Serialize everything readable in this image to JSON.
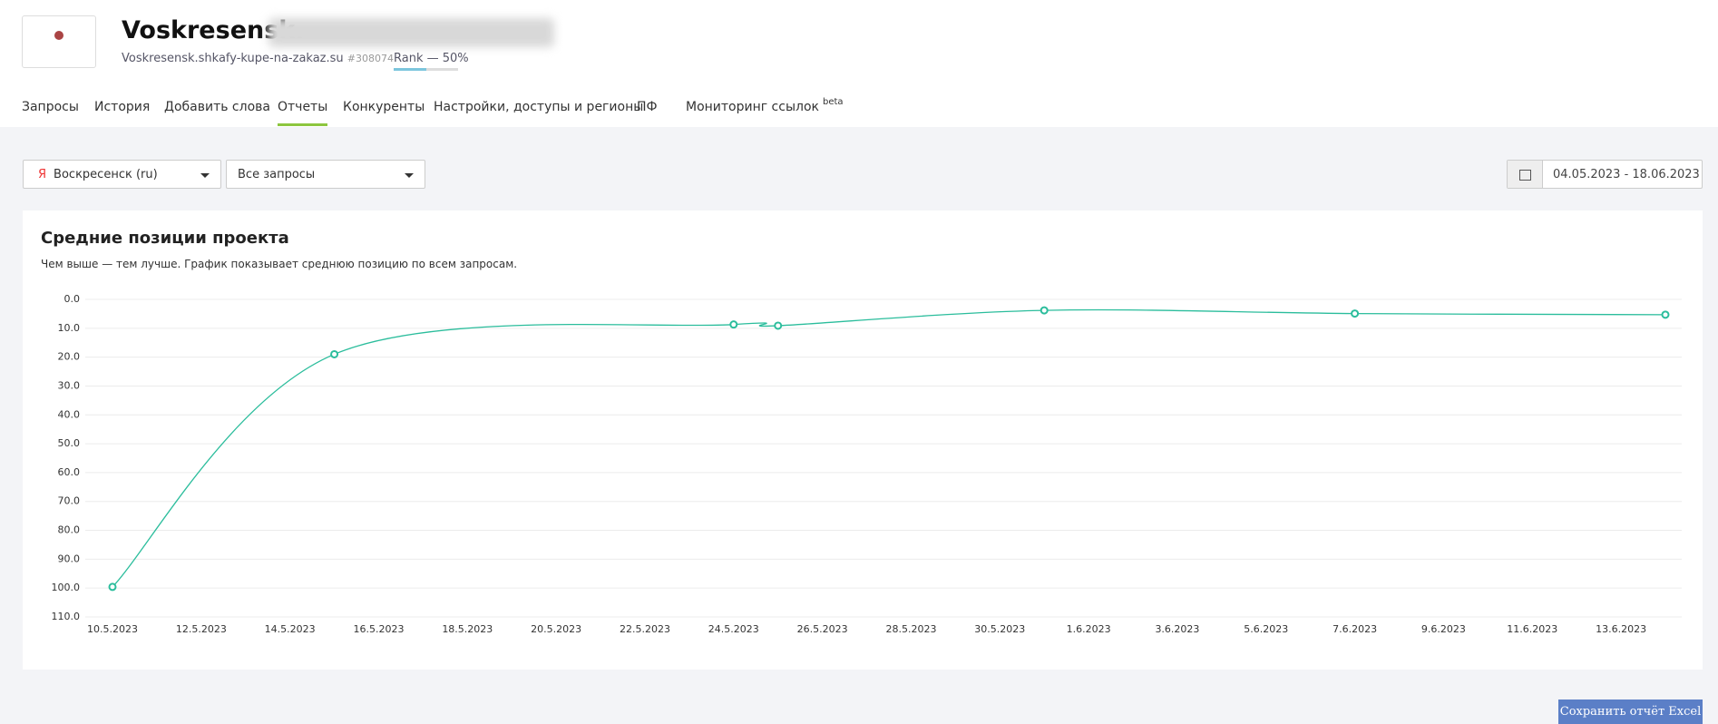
{
  "header": {
    "title": "Voskresensk.",
    "domain": "Voskresensk.shkafy-kupe-na-zakaz.su",
    "project_id": "#308074",
    "rank": "Rank — 50%"
  },
  "tabs": [
    {
      "label": "Запросы"
    },
    {
      "label": "История"
    },
    {
      "label": "Добавить слова"
    },
    {
      "label": "Отчеты"
    },
    {
      "label": "Конкуренты"
    },
    {
      "label": "Настройки, доступы и регионы"
    },
    {
      "label": "ПФ"
    },
    {
      "label": "Мониторинг ссылок",
      "badge": "beta"
    }
  ],
  "filters": {
    "region_icon": "Я",
    "region": "Воскресенск (ru)",
    "queries": "Все запросы",
    "date_range": "04.05.2023 - 18.06.2023"
  },
  "chart_data": {
    "type": "line",
    "title": "Средние позиции проекта",
    "subtitle": "Чем выше — тем лучше. График показывает среднюю позицию по всем запросам.",
    "x": [
      "2023-05-10",
      "2023-05-15",
      "2023-05-24",
      "2023-05-25",
      "2023-05-31",
      "2023-06-07",
      "2023-06-14"
    ],
    "values": [
      99.6,
      19.0,
      8.7,
      9.1,
      3.8,
      4.9,
      5.3
    ],
    "color": "#2bbd9c",
    "xlim": [
      "2023-05-10",
      "2023-06-14"
    ],
    "xticks": [
      {
        "value": "2023-05-10",
        "label": "10.5.2023"
      },
      {
        "value": "2023-05-12",
        "label": "12.5.2023"
      },
      {
        "value": "2023-05-14",
        "label": "14.5.2023"
      },
      {
        "value": "2023-05-16",
        "label": "16.5.2023"
      },
      {
        "value": "2023-05-18",
        "label": "18.5.2023"
      },
      {
        "value": "2023-05-20",
        "label": "20.5.2023"
      },
      {
        "value": "2023-05-22",
        "label": "22.5.2023"
      },
      {
        "value": "2023-05-24",
        "label": "24.5.2023"
      },
      {
        "value": "2023-05-26",
        "label": "26.5.2023"
      },
      {
        "value": "2023-05-28",
        "label": "28.5.2023"
      },
      {
        "value": "2023-05-30",
        "label": "30.5.2023"
      },
      {
        "value": "2023-06-01",
        "label": "1.6.2023"
      },
      {
        "value": "2023-06-03",
        "label": "3.6.2023"
      },
      {
        "value": "2023-06-05",
        "label": "5.6.2023"
      },
      {
        "value": "2023-06-07",
        "label": "7.6.2023"
      },
      {
        "value": "2023-06-09",
        "label": "9.6.2023"
      },
      {
        "value": "2023-06-11",
        "label": "11.6.2023"
      },
      {
        "value": "2023-06-13",
        "label": "13.6.2023"
      }
    ],
    "ylim": [
      0,
      110
    ],
    "y_reversed": true,
    "grid": true,
    "yticks": [
      {
        "value": 0,
        "label": "0.0"
      },
      {
        "value": 10,
        "label": "10.0"
      },
      {
        "value": 20,
        "label": "20.0"
      },
      {
        "value": 30,
        "label": "30.0"
      },
      {
        "value": 40,
        "label": "40.0"
      },
      {
        "value": 50,
        "label": "50.0"
      },
      {
        "value": 60,
        "label": "60.0"
      },
      {
        "value": 70,
        "label": "70.0"
      },
      {
        "value": 80,
        "label": "80.0"
      },
      {
        "value": 90,
        "label": "90.0"
      },
      {
        "value": 100,
        "label": "100.0"
      },
      {
        "value": 110,
        "label": "110.0"
      }
    ]
  },
  "actions": {
    "export": "Сохранить отчёт Excel"
  }
}
